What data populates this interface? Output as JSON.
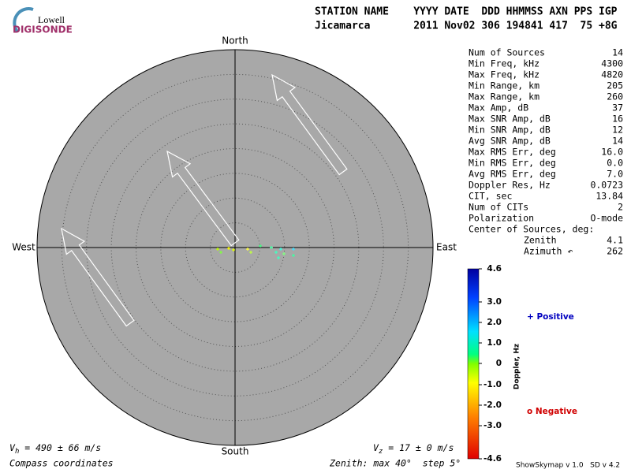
{
  "logo": {
    "top": "Lowell",
    "bottom": "DIGISONDE"
  },
  "header": {
    "columns": "STATION NAME    YYYY DATE  DDD HHMMSS AXN PPS IGP",
    "values": "Jicamarca       2011 Nov02 306 194841 417  75 +8G"
  },
  "compass": {
    "north": "North",
    "south": "South",
    "east": "East",
    "west": "West"
  },
  "stats": [
    [
      "Num of Sources",
      "14"
    ],
    [
      "Min Freq, kHz",
      "4300"
    ],
    [
      "Max Freq, kHz",
      "4820"
    ],
    [
      "Min Range, km",
      "205"
    ],
    [
      "Max Range, km",
      "260"
    ],
    [
      "Max Amp, dB",
      "37"
    ],
    [
      "Max SNR Amp, dB",
      "16"
    ],
    [
      "Min SNR Amp, dB",
      "12"
    ],
    [
      "Avg SNR Amp, dB",
      "14"
    ],
    [
      "Max RMS Err, deg",
      "16.0"
    ],
    [
      "Min RMS Err, deg",
      "0.0"
    ],
    [
      "Avg RMS Err, deg",
      "7.0"
    ],
    [
      "Doppler Res, Hz",
      "0.0723"
    ],
    [
      "CIT, sec",
      "13.84"
    ],
    [
      "Num of CITs",
      "2"
    ],
    [
      "Polarization",
      "O-mode"
    ]
  ],
  "center_of_sources": {
    "label": "Center of Sources, deg:",
    "rows": [
      [
        "Zenith",
        "4.1"
      ],
      [
        "Azimuth ↶",
        "262"
      ]
    ]
  },
  "colorbar": {
    "title": "Doppler, Hz",
    "ticks": [
      "4.6",
      "3.0",
      "2.0",
      "1.0",
      "0",
      "-1.0",
      "-2.0",
      "-3.0",
      "-4.6"
    ]
  },
  "legend": {
    "positive": "+ Positive",
    "negative": "o Negative"
  },
  "footer": {
    "vh": {
      "symbol": "V",
      "subscript": "h",
      "text": " = 490 ± 66 m/s"
    },
    "vz": {
      "symbol": "V",
      "subscript": "z",
      "text": " = 17 ± 0 m/s"
    },
    "coordinates": "Compass coordinates",
    "zenith": "Zenith: max 40°  step 5°",
    "version": "ShowSkymap v 1.0   SD v 4.2"
  }
}
